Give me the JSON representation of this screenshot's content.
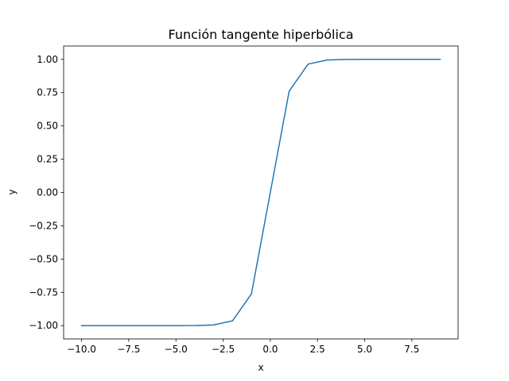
{
  "chart_data": {
    "type": "line",
    "title": "Función tangente hiperbólica",
    "xlabel": "x",
    "ylabel": "y",
    "xlim": [
      -10.95,
      9.95
    ],
    "ylim": [
      -1.1,
      1.1
    ],
    "xticks": [
      -10.0,
      -7.5,
      -5.0,
      -2.5,
      0.0,
      2.5,
      5.0,
      7.5
    ],
    "xtick_labels": [
      "−10.0",
      "−7.5",
      "−5.0",
      "−2.5",
      "0.0",
      "2.5",
      "5.0",
      "7.5"
    ],
    "yticks": [
      -1.0,
      -0.75,
      -0.5,
      -0.25,
      0.0,
      0.25,
      0.5,
      0.75,
      1.0
    ],
    "ytick_labels": [
      "−1.00",
      "−0.75",
      "−0.50",
      "−0.25",
      "0.00",
      "0.25",
      "0.50",
      "0.75",
      "1.00"
    ],
    "grid": false,
    "series": [
      {
        "color": "#1f77b4",
        "x": [
          -10,
          -9,
          -8,
          -7,
          -6,
          -5,
          -4,
          -3,
          -2,
          -1,
          0,
          1,
          2,
          3,
          4,
          5,
          6,
          7,
          8,
          9
        ],
        "y": [
          -1.0,
          -1.0,
          -1.0,
          -1.0,
          -1.0,
          -0.9999,
          -0.9993,
          -0.9951,
          -0.964,
          -0.7616,
          0.0,
          0.7616,
          0.964,
          0.9951,
          0.9993,
          0.9999,
          1.0,
          1.0,
          1.0,
          1.0
        ]
      }
    ]
  }
}
